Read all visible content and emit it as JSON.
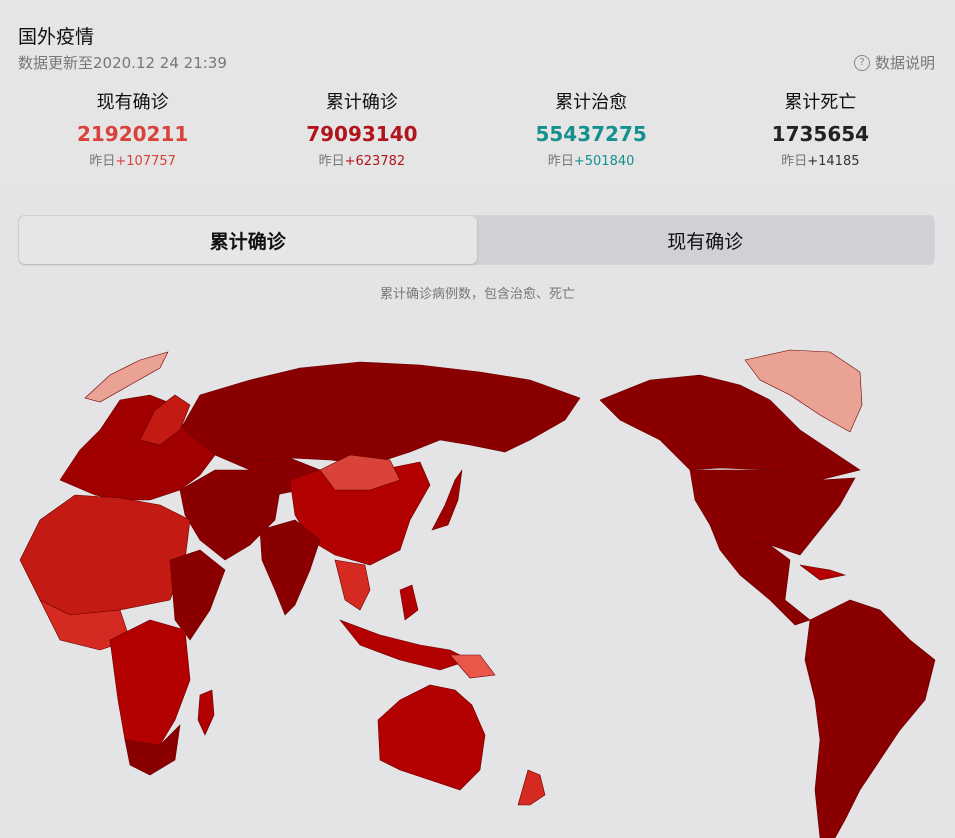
{
  "header": {
    "title": "国外疫情",
    "updated": "数据更新至2020.12 24 21:39",
    "explain_label": "数据说明",
    "explain_icon": "question-circle-icon"
  },
  "stats": [
    {
      "label": "现有确诊",
      "value": "21920211",
      "delta_prefix": "昨日",
      "delta": "+107757",
      "color": "#d9413a"
    },
    {
      "label": "累计确诊",
      "value": "79093140",
      "delta_prefix": "昨日",
      "delta": "+623782",
      "color": "#b0141c"
    },
    {
      "label": "累计治愈",
      "value": "55437275",
      "delta_prefix": "昨日",
      "delta": "+501840",
      "color": "#16908f"
    },
    {
      "label": "累计死亡",
      "value": "1735654",
      "delta_prefix": "昨日",
      "delta": "+14185",
      "color": "#222222"
    }
  ],
  "tabs": [
    {
      "label": "累计确诊",
      "active": true
    },
    {
      "label": "现有确诊",
      "active": false
    }
  ],
  "map": {
    "caption": "累计确诊病例数，包含治愈、死亡",
    "colors": {
      "highest": "#8a0000",
      "high": "#b30000",
      "mid": "#d42a22",
      "low": "#e8574a",
      "lowest": "#eaa294"
    }
  }
}
